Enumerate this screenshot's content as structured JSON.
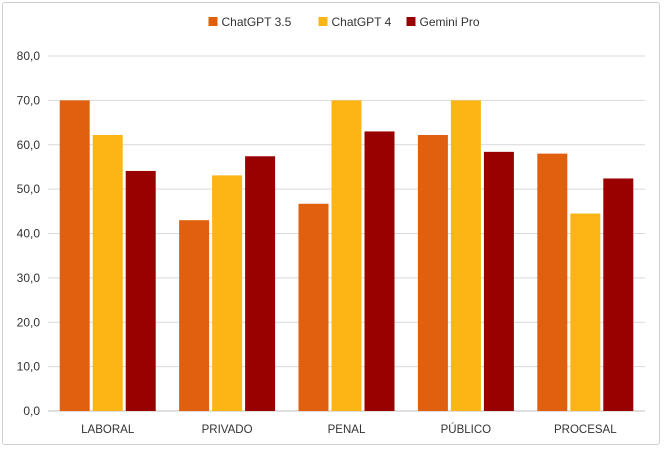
{
  "chart_data": {
    "type": "bar",
    "categories": [
      "LABORAL",
      "PRIVADO",
      "PENAL",
      "PÚBLICO",
      "PROCESAL"
    ],
    "series": [
      {
        "name": "ChatGPT 3.5",
        "color": "#E06010",
        "values": [
          70.0,
          43.0,
          46.7,
          62.2,
          58.0
        ]
      },
      {
        "name": "ChatGPT 4",
        "color": "#FDB515",
        "values": [
          62.2,
          53.1,
          70.0,
          70.0,
          44.5
        ]
      },
      {
        "name": "Gemini Pro",
        "color": "#990000",
        "values": [
          54.1,
          57.4,
          63.0,
          58.4,
          52.4
        ]
      }
    ],
    "ylim": [
      0,
      80
    ],
    "yticks": [
      "0,0",
      "10,0",
      "20,0",
      "30,0",
      "40,0",
      "50,0",
      "60,0",
      "70,0",
      "80,0"
    ],
    "grid": true,
    "legend_position": "top-center"
  }
}
